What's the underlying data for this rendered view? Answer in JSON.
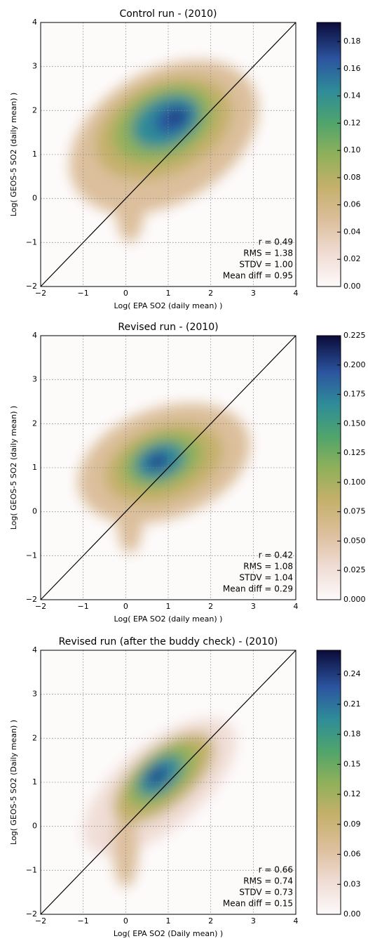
{
  "chart_data": [
    {
      "type": "density2d",
      "title": "Control run - (2010)",
      "x_label": "Log( EPA SO2 (daily mean) )",
      "y_label": "Log( GEOS-5 SO2 (daily mean) )",
      "xlim": [
        -2,
        4
      ],
      "ylim": [
        -2,
        4
      ],
      "xticks": [
        {
          "value": -2,
          "label": "−2"
        },
        {
          "value": -1,
          "label": "−1"
        },
        0,
        1,
        2,
        3,
        4
      ],
      "yticks": [
        {
          "value": -2,
          "label": "−2"
        },
        {
          "value": -1,
          "label": "−1"
        },
        0,
        1,
        2,
        3,
        4
      ],
      "clim": [
        0,
        0.194
      ],
      "cticks": [
        {
          "value": 0,
          "label": "0.00"
        },
        0.02,
        0.04,
        0.06,
        0.08,
        {
          "value": 0.1,
          "label": "0.10"
        },
        0.12,
        0.14,
        0.16,
        0.18
      ],
      "annotations": [
        "r = 0.49",
        "RMS = 1.38",
        "STDV = 1.00",
        "Mean diff = 0.95"
      ],
      "grid": true,
      "identity_line": true
    },
    {
      "type": "density2d",
      "title": "Revised run - (2010)",
      "x_label": "Log( EPA SO2 (daily mean) )",
      "y_label": "Log( GEOS-5 SO2 (daily mean) )",
      "xlim": [
        -2,
        4
      ],
      "ylim": [
        -2,
        4
      ],
      "xticks": [
        {
          "value": -2,
          "label": "−2"
        },
        {
          "value": -1,
          "label": "−1"
        },
        0,
        1,
        2,
        3,
        4
      ],
      "yticks": [
        {
          "value": -2,
          "label": "−2"
        },
        {
          "value": -1,
          "label": "−1"
        },
        0,
        1,
        2,
        3,
        4
      ],
      "clim": [
        0,
        0.225
      ],
      "cticks": [
        {
          "value": 0,
          "label": "0.000"
        },
        0.025,
        {
          "value": 0.05,
          "label": "0.050"
        },
        0.075,
        {
          "value": 0.1,
          "label": "0.100"
        },
        0.125,
        {
          "value": 0.15,
          "label": "0.150"
        },
        0.175,
        {
          "value": 0.2,
          "label": "0.200"
        },
        0.225
      ],
      "annotations": [
        "r = 0.42",
        "RMS = 1.08",
        "STDV = 1.04",
        "Mean diff = 0.29"
      ],
      "grid": true,
      "identity_line": true
    },
    {
      "type": "density2d",
      "title": "Revised run (after the buddy check) - (2010)",
      "x_label": "Log( EPA SO2 (Daily mean) )",
      "y_label": "Log( GEOS-5 SO2 (Daily mean) )",
      "xlim": [
        -2,
        4
      ],
      "ylim": [
        -2,
        4
      ],
      "xticks": [
        {
          "value": -2,
          "label": "−2"
        },
        {
          "value": -1,
          "label": "−1"
        },
        0,
        1,
        2,
        3,
        4
      ],
      "yticks": [
        {
          "value": -2,
          "label": "−2"
        },
        {
          "value": -1,
          "label": "−1"
        },
        0,
        1,
        2,
        3,
        4
      ],
      "clim": [
        0,
        0.264
      ],
      "cticks": [
        {
          "value": 0,
          "label": "0.00"
        },
        0.03,
        0.06,
        0.09,
        0.12,
        0.15,
        0.18,
        0.21,
        0.24
      ],
      "annotations": [
        "r = 0.66",
        "RMS = 0.74",
        "STDV = 0.73",
        "Mean diff = 0.15"
      ],
      "grid": true,
      "identity_line": true
    }
  ]
}
